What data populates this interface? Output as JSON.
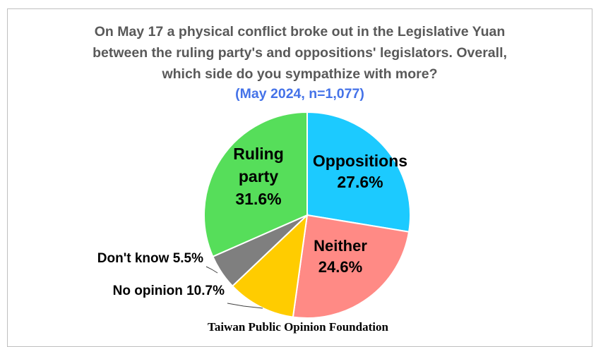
{
  "chart_data": {
    "type": "pie",
    "title_lines": [
      "On May 17 a physical conflict broke out in the Legislative Yuan",
      "between the ruling party's and oppositions' legislators. Overall,",
      "which side do you sympathize with more?"
    ],
    "subtitle": "(May 2024, n=1,077)",
    "slices": [
      {
        "name": "Oppositions",
        "value": 27.6,
        "label_lines": [
          "Oppositions",
          "27.6%"
        ],
        "color": "#1ccaff"
      },
      {
        "name": "Neither",
        "value": 24.6,
        "label_lines": [
          "Neither",
          "24.6%"
        ],
        "color": "#ff8a85"
      },
      {
        "name": "No opinion",
        "value": 10.7,
        "label_lines": [
          "No opinion 10.7%"
        ],
        "color": "#ffcc00"
      },
      {
        "name": "Don't know",
        "value": 5.5,
        "label_lines": [
          "Don't know 5.5%"
        ],
        "color": "#7f7f7f"
      },
      {
        "name": "Ruling party",
        "value": 31.6,
        "label_lines": [
          "Ruling",
          "party",
          "31.6%"
        ],
        "color": "#56de5a"
      }
    ],
    "legend": "none"
  },
  "source": "Taiwan Public Opinion Foundation"
}
